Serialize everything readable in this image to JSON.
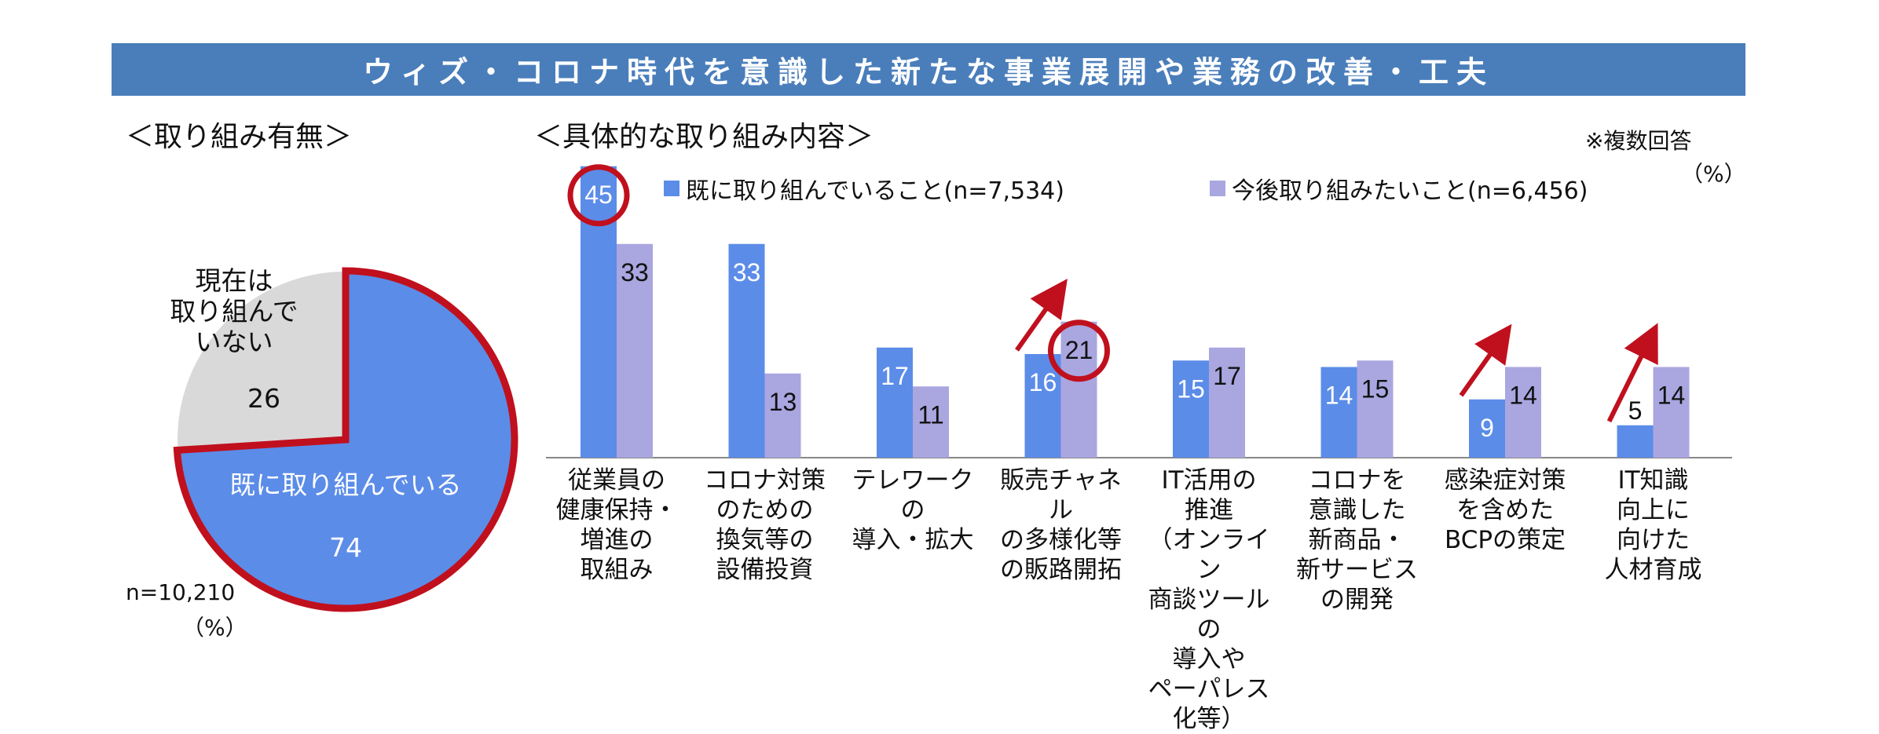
{
  "banner_title": "ウィズ・コロナ時代を意識した新たな事業展開や業務の改善・工夫",
  "pie": {
    "section_title": "＜取り組み有無＞",
    "n_note": "n=10,210",
    "unit": "（%）",
    "slices": [
      {
        "label": "既に取り組んでいる",
        "value": 74,
        "color": "#5b8ce8"
      },
      {
        "label": "現在は\n取り組んで\nいない",
        "value": 26,
        "color": "#d9d9d9"
      }
    ],
    "outline_color": "#c0101e"
  },
  "bars": {
    "section_title": "＜具体的な取り組み内容＞",
    "note": "※複数回答",
    "unit": "（%）",
    "highlight_color": "#c0101e"
  },
  "chart_data": [
    {
      "type": "pie",
      "title": "＜取り組み有無＞",
      "categories": [
        "既に取り組んでいる",
        "現在は取り組んでいない"
      ],
      "values": [
        74,
        26
      ],
      "unit": "%"
    },
    {
      "type": "bar",
      "title": "＜具体的な取り組み内容＞",
      "categories": [
        "従業員の\n健康保持・\n増進の\n取組み",
        "コロナ対策\nのための\n換気等の\n設備投資",
        "テレワークの\n導入・拡大",
        "販売チャネル\nの多様化等\nの販路開拓",
        "IT活用の\n推進\n（オンライン\n商談ツールの\n導入や\nペーパレス化等）",
        "コロナを\n意識した\n新商品・\n新サービス\nの開発",
        "感染症対策\nを含めた\nBCPの策定",
        "IT知識\n向上に\n向けた\n人材育成"
      ],
      "series": [
        {
          "name": "既に取り組んでいること(n=7,534)",
          "color": "#5b8ce8",
          "values": [
            45,
            33,
            17,
            16,
            15,
            14,
            9,
            5
          ]
        },
        {
          "name": "今後取り組みたいこと(n=6,456)",
          "color": "#aaa6e0",
          "values": [
            33,
            13,
            11,
            21,
            17,
            15,
            14,
            14
          ]
        }
      ],
      "ylim": [
        0,
        45
      ],
      "grid": false,
      "legend": "top",
      "circled": [
        {
          "series": 0,
          "index": 0
        },
        {
          "series": 1,
          "index": 3
        }
      ],
      "arrows": [
        3,
        6,
        7
      ]
    }
  ]
}
